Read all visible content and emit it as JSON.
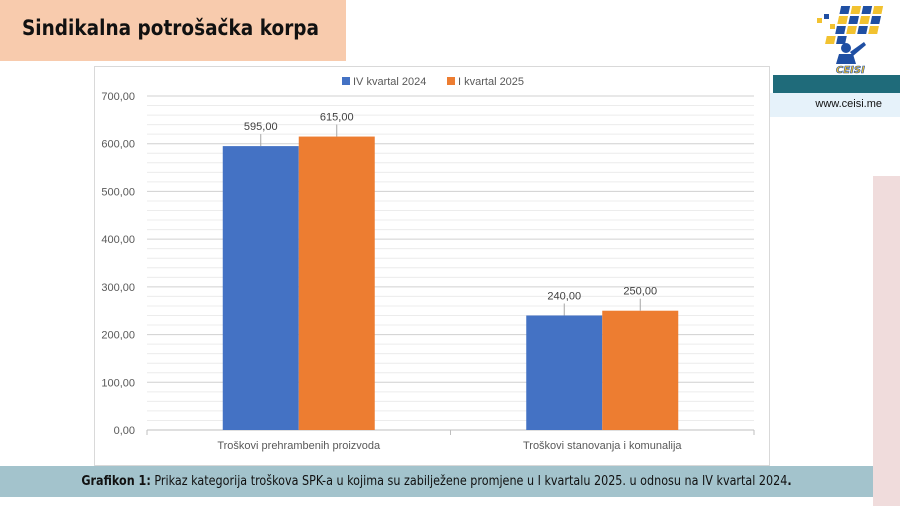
{
  "header": {
    "title": "Sindikalna potrošačka korpa"
  },
  "brand": {
    "logo_text": "CEISI",
    "website": "www.ceisi.me"
  },
  "caption": {
    "label": "Grafikon 1:",
    "text": " Prikaz kategorija troškova SPK-a u kojima su zabilježene promjene u I kvartalu 2025. u odnosu na IV kvartal 2024",
    "end": "."
  },
  "chart_data": {
    "type": "bar",
    "categories": [
      "Troškovi prehrambenih proizvoda",
      "Troškovi stanovanja i komunalija"
    ],
    "series": [
      {
        "name": "IV kvartal 2024",
        "values": [
          595,
          240
        ],
        "labels": [
          "595,00",
          "240,00"
        ],
        "color": "#4472c4"
      },
      {
        "name": "I kvartal 2025",
        "values": [
          615,
          250
        ],
        "labels": [
          "615,00",
          "250,00"
        ],
        "color": "#ed7d31"
      }
    ],
    "ylim": [
      0,
      700
    ],
    "yticks": [
      0,
      100,
      200,
      300,
      400,
      500,
      600,
      700
    ],
    "ytick_labels": [
      "0,00",
      "100,00",
      "200,00",
      "300,00",
      "400,00",
      "500,00",
      "600,00",
      "700,00"
    ],
    "grid": true,
    "legend": "top-center"
  }
}
